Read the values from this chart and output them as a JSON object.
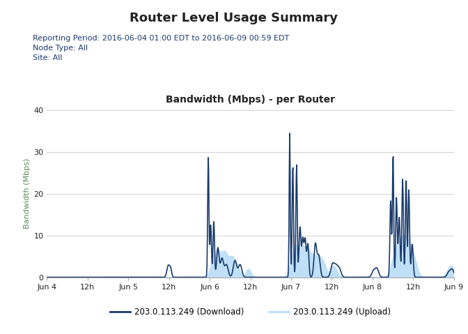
{
  "title": "Router Level Usage Summary",
  "subtitle_lines": [
    "Reporting Period: 2016-06-04 01:00 EDT to 2016-06-09 00:59 EDT",
    "Node Type: All",
    "Site: All"
  ],
  "chart_title": "Bandwidth (Mbps) - per Router",
  "ylabel": "Bandwidth (Mbps)",
  "ylim": [
    0,
    40
  ],
  "yticks": [
    0,
    10,
    20,
    30,
    40
  ],
  "download_color": "#1a3a6b",
  "upload_color": "#b8ddf5",
  "download_label": "203.0.113.249 (Download)",
  "upload_label": "203.0.113.249 (Upload)",
  "xtick_labels": [
    "Jun 4",
    "12h",
    "Jun 5",
    "12h",
    "Jun 6",
    "12h",
    "Jun 7",
    "12h",
    "Jun 8",
    "12h",
    "Jun 9"
  ],
  "bg_color": "#ffffff",
  "grid_color": "#d0d0d0",
  "axis_label_color": "#5a8a5a",
  "subtitle_color": "#1a3a6b",
  "text_color": "#222222",
  "title_fontsize": 13,
  "subtitle_fontsize": 8,
  "chart_title_fontsize": 10,
  "tick_fontsize": 8,
  "ylabel_fontsize": 8
}
